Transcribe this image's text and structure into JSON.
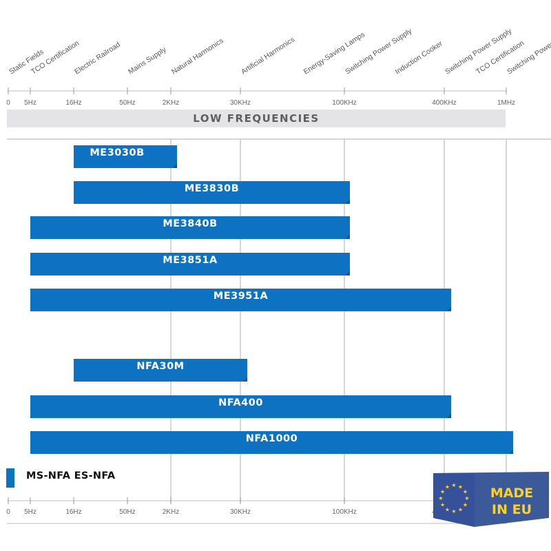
{
  "chart_data": {
    "type": "bar",
    "orientation": "horizontal-range",
    "band_label": "LOW FREQUENCIES",
    "x_ticks": [
      "0",
      "5Hz",
      "16Hz",
      "50Hz",
      "2KHz",
      "30KHz",
      "100KHz",
      "400KHz",
      "1MHz"
    ],
    "applications": [
      {
        "label": "Static Fields",
        "tick": 0
      },
      {
        "label": "TCO Certification",
        "tick": 1
      },
      {
        "label": "Electric Railroad",
        "tick": 2
      },
      {
        "label": "Mains Supply",
        "tick": 3
      },
      {
        "label": "Natural Harmonics",
        "tick": 4
      },
      {
        "label": "Artificial Harmonics",
        "tick": 5
      },
      {
        "label": "Energy-Saving Lamps",
        "tick": 5.6
      },
      {
        "label": "Switching Power Supply",
        "tick": 6
      },
      {
        "label": "Induction Cooker",
        "tick": 6.5
      },
      {
        "label": "Switching Power Supply",
        "tick": 7
      },
      {
        "label": "TCO Certification",
        "tick": 7.5
      },
      {
        "label": "Switching Power Supply",
        "tick": 8
      }
    ],
    "series": [
      {
        "name": "ME3030B",
        "start": "16Hz",
        "end": "2KHz"
      },
      {
        "name": "ME3830B",
        "start": "16Hz",
        "end": "100KHz"
      },
      {
        "name": "ME3840B",
        "start": "5Hz",
        "end": "100KHz"
      },
      {
        "name": "ME3851A",
        "start": "5Hz",
        "end": "100KHz"
      },
      {
        "name": "ME3951A",
        "start": "5Hz",
        "end": "400KHz"
      },
      {
        "name": "NFA30M",
        "start": "16Hz",
        "end": "30KHz"
      },
      {
        "name": "NFA400",
        "start": "5Hz",
        "end": "400KHz"
      },
      {
        "name": "NFA1000",
        "start": "5Hz",
        "end": "1MHz"
      }
    ],
    "legend": {
      "label": "MS-NFA  ES-NFA",
      "color": "#0d72c2"
    },
    "colors": {
      "bar": "#0d72c2",
      "band": "#e4e4e6",
      "grid": "#c8c8c8"
    }
  },
  "badge": {
    "line1": "MADE",
    "line2": "IN EU"
  }
}
